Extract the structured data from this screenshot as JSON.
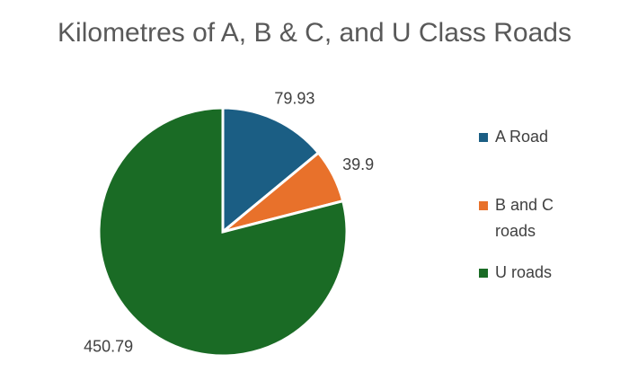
{
  "chart_data": {
    "type": "pie",
    "title": "Kilometres of A, B & C, and U Class Roads",
    "categories": [
      "A Road",
      "B and C roads",
      "U roads"
    ],
    "values": [
      79.93,
      39.9,
      450.79
    ],
    "colors": [
      "#1b5e84",
      "#e8712b",
      "#1a6b25"
    ],
    "legend": "right"
  }
}
